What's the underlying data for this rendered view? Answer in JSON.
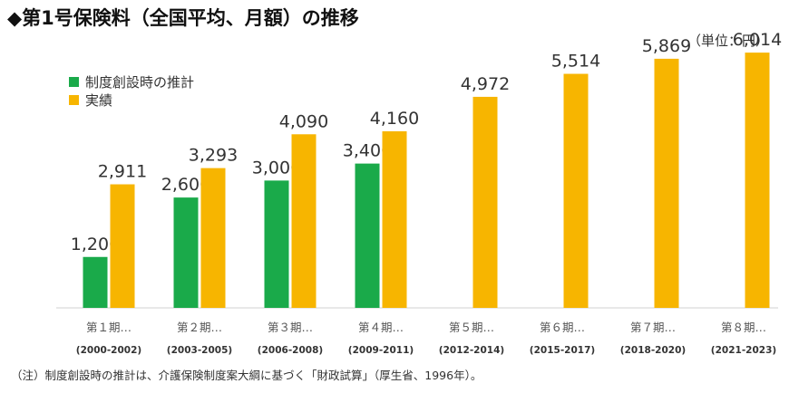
{
  "title": "◆第1号保険料（全国平均、月額）の推移",
  "unit_label": "（単位：円）",
  "note": "（注）制度創設時の推計は、介護保険制度案大綱に基づく「財政試算」（厚生省、1996年）。",
  "colors": {
    "estimate": "#1aaa4a",
    "actual": "#f7b500"
  },
  "chart_data": {
    "type": "bar",
    "categories": [
      "第１期…",
      "第２期…",
      "第３期…",
      "第４期…",
      "第５期…",
      "第６期…",
      "第７期…",
      "第８期…"
    ],
    "periods": [
      "(2000-2002)",
      "(2003-2005)",
      "(2006-2008)",
      "(2009-2011)",
      "(2012-2014)",
      "(2015-2017)",
      "(2018-2020)",
      "(2021-2023)"
    ],
    "series": [
      {
        "name": "制度創設時の推計",
        "values": [
          1200,
          2600,
          3000,
          3400,
          null,
          null,
          null,
          null
        ]
      },
      {
        "name": "実績",
        "values": [
          2911,
          3293,
          4090,
          4160,
          4972,
          5514,
          5869,
          6014
        ]
      }
    ],
    "value_labels": [
      [
        "1,200",
        "2,600",
        "3,000",
        "3,400",
        null,
        null,
        null,
        null
      ],
      [
        "2,911",
        "3,293",
        "4,090",
        "4,160",
        "4,972",
        "5,514",
        "5,869",
        "6,014"
      ]
    ],
    "ylim": [
      0,
      6400
    ],
    "grid": false,
    "legend_position": "top-left"
  }
}
